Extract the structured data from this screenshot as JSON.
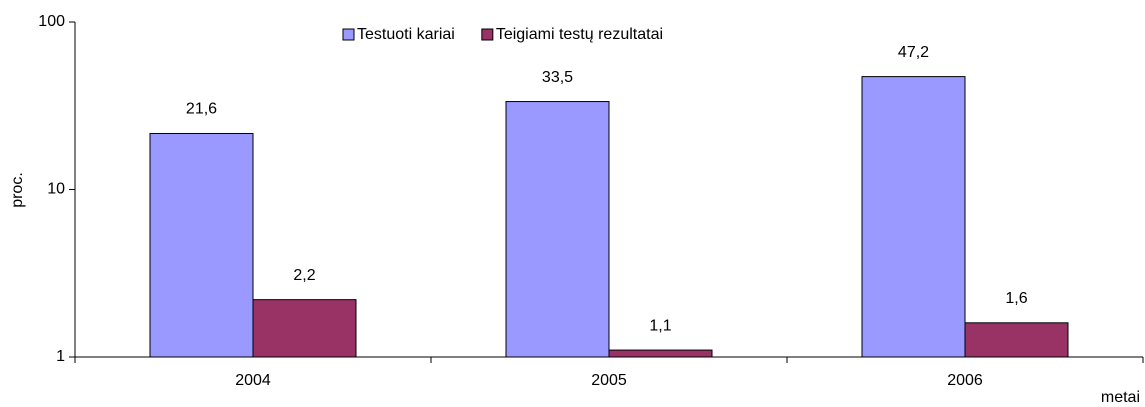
{
  "chart_data": {
    "type": "bar",
    "categories": [
      "2004",
      "2005",
      "2006"
    ],
    "series": [
      {
        "name": "Testuoti kariai",
        "color": "#9999ff",
        "values": [
          21.6,
          33.5,
          47.2
        ],
        "value_labels": [
          "21,6",
          "33,5",
          "47,2"
        ]
      },
      {
        "name": "Teigiami testų rezultatai",
        "color": "#993366",
        "values": [
          2.2,
          1.1,
          1.6
        ],
        "value_labels": [
          "2,2",
          "1,1",
          "1,6"
        ]
      }
    ],
    "ylabel": "proc.",
    "xlabel": "metai",
    "yscale": "log",
    "ylim": [
      1,
      100
    ],
    "yticks": [
      1,
      10,
      100
    ],
    "legend": "top"
  }
}
